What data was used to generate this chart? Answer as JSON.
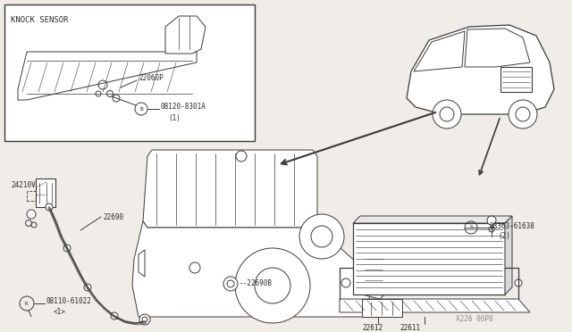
{
  "bg_color": "#f0ede8",
  "line_color": "#3a3a3a",
  "text_color": "#2a2a2a",
  "parts": {
    "knock_sensor_label": "KNOCK SENSOR",
    "part_22060P": "22060P",
    "part_08120_num": "08120-8301A",
    "part_08120_qty": "(1)",
    "part_24210V": "24210V",
    "part_22690": "22690",
    "part_22690B": "22690B",
    "part_08110_num": "08110-61022",
    "part_08110_qty": "<1>",
    "part_08363_num": "08363-61638",
    "part_08363_qty": "(2)",
    "part_22612": "22612",
    "part_22611": "22611",
    "watermark": "A226 00P8"
  }
}
